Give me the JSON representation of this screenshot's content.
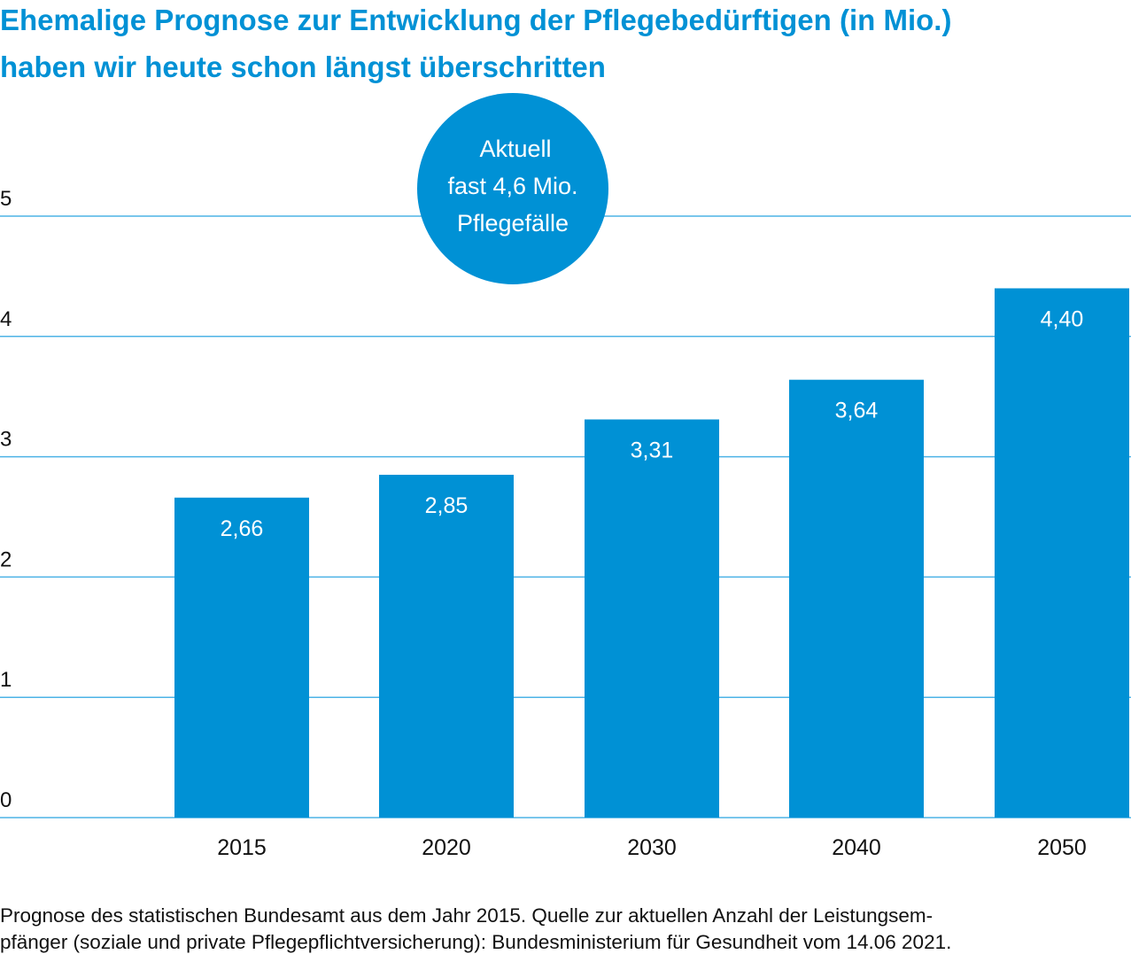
{
  "chart_data": {
    "type": "bar",
    "title_lines": [
      "Ehemalige Prognose zur Entwicklung der Pflegebedürftigen (in Mio.)",
      "haben wir heute schon längst überschritten"
    ],
    "categories": [
      "2015",
      "2020",
      "2030",
      "2040",
      "2050"
    ],
    "values": [
      2.66,
      2.85,
      3.31,
      3.64,
      4.4
    ],
    "data_labels": [
      "2,66",
      "2,85",
      "3,31",
      "3,64",
      "4,40"
    ],
    "yticks": [
      "0",
      "1",
      "2",
      "3",
      "4",
      "5"
    ],
    "ylim": [
      0,
      5
    ],
    "grid": true,
    "annotation": {
      "lines": [
        "Aktuell",
        "fast 4,6 Mio.",
        "Pflegefälle"
      ]
    },
    "footnote_lines": [
      "Prognose des statistischen Bundesamt aus dem Jahr 2015. Quelle zur aktuellen Anzahl der Leistungsem-",
      "pfänger (soziale und private Pflegepflichtversicherung): Bundesministerium für Gesundheit vom 14.06 2021."
    ],
    "colors": {
      "bar": "#0091d5",
      "title": "#0091d5",
      "grid": "#4db3e6",
      "annotation": "#0091d5"
    }
  }
}
